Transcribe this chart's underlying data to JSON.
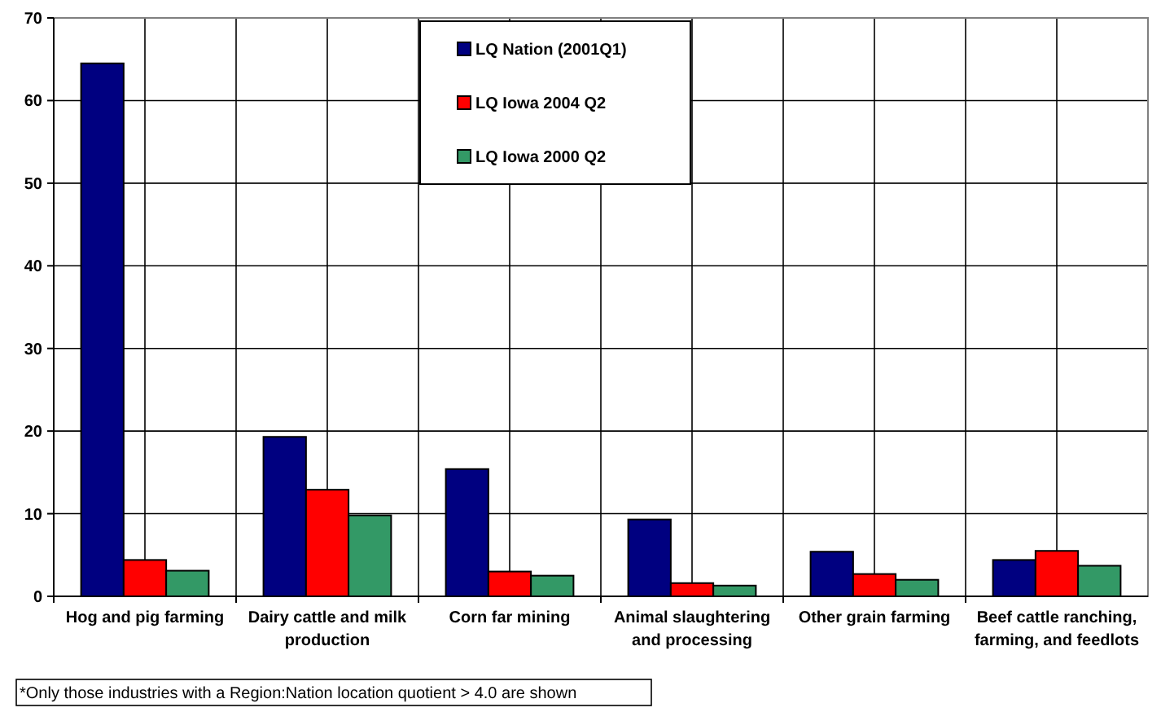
{
  "chart_data": {
    "type": "bar",
    "categories": [
      "Hog and pig farming",
      "Dairy cattle and milk production",
      "Corn far mining",
      "Animal slaughtering and processing",
      "Other grain farming",
      "Beef cattle ranching, farming, and feedlots"
    ],
    "series": [
      {
        "name": "LQ Nation (2001Q1)",
        "color": "#000080",
        "values": [
          64.5,
          19.3,
          15.4,
          9.3,
          5.4,
          4.4
        ]
      },
      {
        "name": "LQ Iowa 2004 Q2",
        "color": "#ff0000",
        "values": [
          4.4,
          12.9,
          3.0,
          1.6,
          2.7,
          5.5
        ]
      },
      {
        "name": "LQ Iowa 2000 Q2",
        "color": "#339966",
        "values": [
          3.1,
          9.8,
          2.5,
          1.3,
          2.0,
          3.7
        ]
      }
    ],
    "ylim": [
      0,
      70
    ],
    "yticks": [
      0,
      10,
      20,
      30,
      40,
      50,
      60,
      70
    ],
    "grid": true,
    "legend": "top",
    "annotations": [
      "*Only those industries with a Region:Nation location quotient > 4.0 are shown"
    ]
  }
}
